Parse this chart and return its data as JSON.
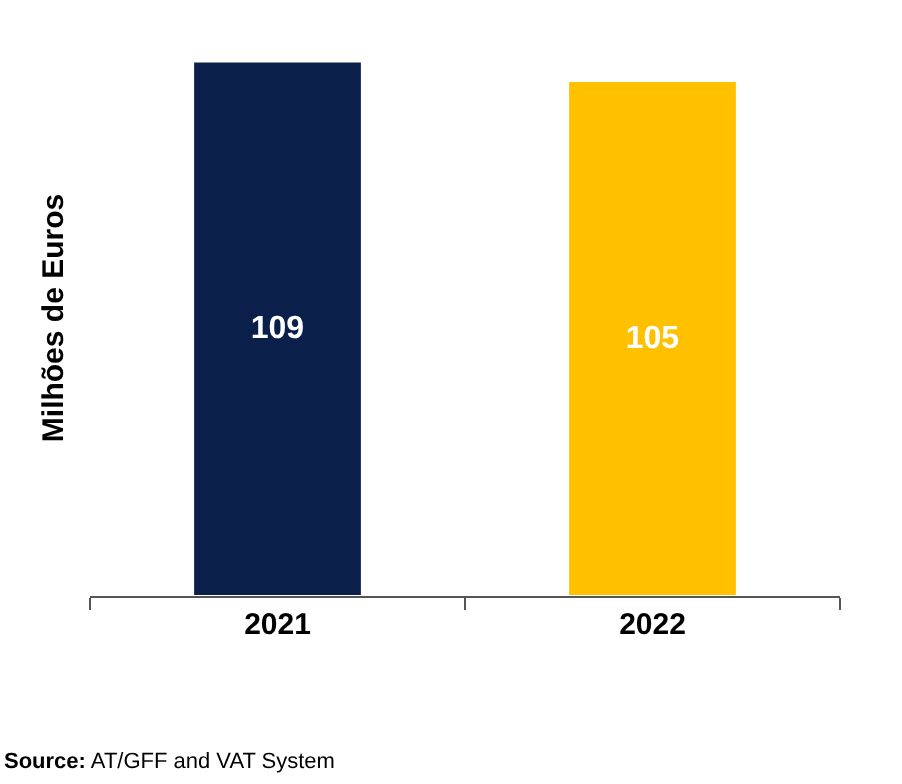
{
  "chart_data": {
    "type": "bar",
    "categories": [
      "2021",
      "2022"
    ],
    "values": [
      109,
      105
    ],
    "colors": [
      "#0b1f4b",
      "#ffc000"
    ],
    "data_labels": true,
    "ylabel": "Milhões de Euros",
    "grid": false,
    "annotations": [
      "Source: AT/GFF and VAT System"
    ]
  }
}
